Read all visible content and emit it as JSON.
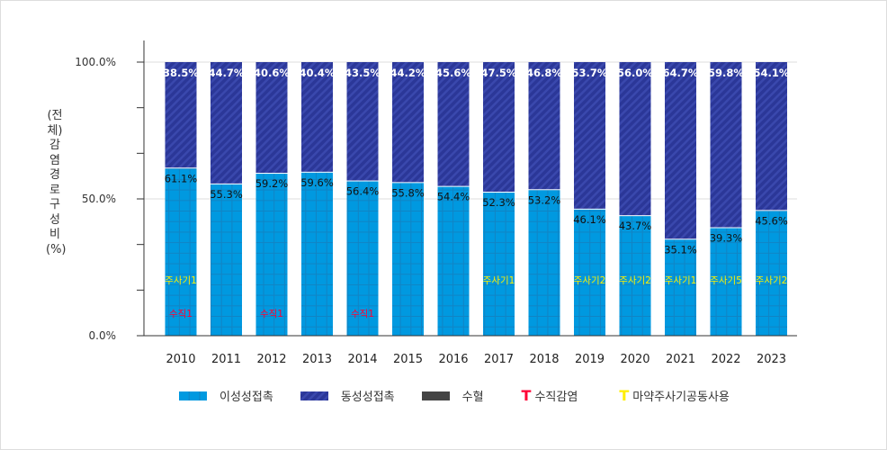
{
  "chart_data": {
    "type": "bar",
    "stacked": true,
    "ylabel": "(전체)감염경로 구성비(%)",
    "ylim": [
      0,
      100
    ],
    "yticks": [
      "0.0%",
      "50.0%",
      "100.0%"
    ],
    "grid": true,
    "legend_placement": "bottom",
    "categories": [
      "2010",
      "2011",
      "2012",
      "2013",
      "2014",
      "2015",
      "2016",
      "2017",
      "2018",
      "2019",
      "2020",
      "2021",
      "2022",
      "2023"
    ],
    "series": [
      {
        "name": "이성성접촉",
        "color": "#0099e0",
        "values": [
          61.1,
          55.3,
          59.2,
          59.6,
          56.4,
          55.8,
          54.4,
          52.3,
          53.2,
          46.1,
          43.7,
          35.1,
          39.3,
          45.6
        ]
      },
      {
        "name": "동성성접촉",
        "color": "#2e3a9e",
        "values": [
          38.5,
          44.7,
          40.6,
          40.4,
          43.5,
          44.2,
          45.6,
          47.5,
          46.8,
          53.7,
          56.0,
          64.7,
          59.8,
          54.1
        ]
      }
    ],
    "legend": [
      {
        "name": "이성성접촉",
        "color": "#0099e0",
        "symbol": "grid-swatch"
      },
      {
        "name": "동성성접촉",
        "color": "#2e3a9e",
        "symbol": "hatch-swatch"
      },
      {
        "name": "수혈",
        "color": "#444444",
        "symbol": "swatch"
      },
      {
        "name": "수직감염",
        "color": "#ff0033",
        "symbol": "T"
      },
      {
        "name": "마약주사기공동사용",
        "color": "#ffee00",
        "symbol": "T"
      }
    ],
    "annotations": {
      "injection": {
        "color": "#ffee00",
        "labels": [
          "주사기1",
          "",
          "",
          "",
          "",
          "",
          "",
          "주사기1",
          "",
          "주사기2",
          "주사기2",
          "주사기1",
          "주사기5",
          "주사기2"
        ]
      },
      "vertical": {
        "color": "#ff0033",
        "labels": [
          "수직1",
          "",
          "수직1",
          "",
          "수직1",
          "",
          "",
          "",
          "",
          "",
          "",
          "",
          "",
          ""
        ]
      }
    }
  }
}
